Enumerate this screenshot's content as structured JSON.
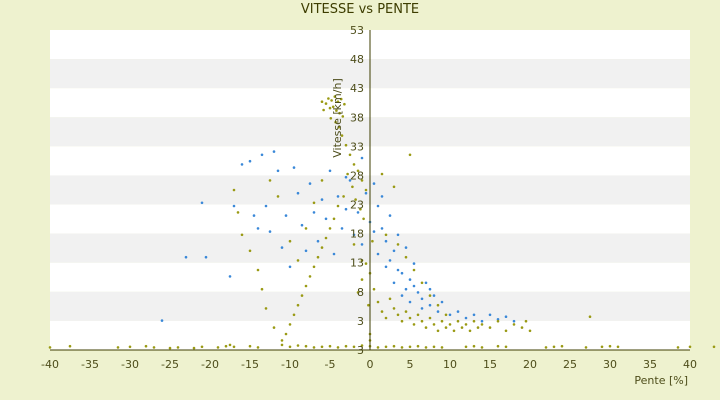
{
  "chart_data": {
    "type": "scatter",
    "title": "VITESSE vs PENTE",
    "xlabel": "Pente [%]",
    "ylabel": "Vitesse [km/h]",
    "xlim": [
      -40,
      40
    ],
    "ylim": [
      3,
      53
    ],
    "x_ticks": [
      "-40",
      "-35",
      "-30",
      "-25",
      "-20",
      "-15",
      "-10",
      "-5",
      "0",
      "5",
      "10",
      "15",
      "20",
      "25",
      "30",
      "35",
      "40"
    ],
    "y_ticks": [
      "3",
      "3",
      "8",
      "13",
      "18",
      "23",
      "28",
      "33",
      "38",
      "43",
      "48",
      "53"
    ],
    "grid": "horizontal bands",
    "colors": {
      "background": "#eef2cf",
      "band_light": "#ffffff",
      "band_dark": "#f1f1f1",
      "series_olive": "#9a9a14",
      "series_blue": "#3a88d8",
      "axis": "#3d3d00"
    },
    "series": [
      {
        "color": "#3a88d8",
        "points": [
          [
            -26,
            7.6
          ],
          [
            -23,
            17.5
          ],
          [
            -21,
            26.0
          ],
          [
            -20.5,
            17.5
          ],
          [
            -17.5,
            14.5
          ],
          [
            -17,
            25.5
          ],
          [
            -16,
            32.0
          ],
          [
            -15,
            32.5
          ],
          [
            -14.5,
            24.0
          ],
          [
            -14,
            22.0
          ],
          [
            -13.5,
            33.5
          ],
          [
            -13,
            25.5
          ],
          [
            -12.5,
            21.5
          ],
          [
            -12,
            34.0
          ],
          [
            -11.5,
            31.0
          ],
          [
            -11,
            19.0
          ],
          [
            -10.5,
            24.0
          ],
          [
            -10,
            16.0
          ],
          [
            -9.5,
            31.5
          ],
          [
            -9,
            27.5
          ],
          [
            -8.5,
            22.5
          ],
          [
            -8,
            18.5
          ],
          [
            -7.5,
            29.0
          ],
          [
            -7,
            24.5
          ],
          [
            -6.5,
            20.0
          ],
          [
            -6,
            26.5
          ],
          [
            -5.5,
            23.5
          ],
          [
            -5,
            31.0
          ],
          [
            -4.5,
            18.0
          ],
          [
            -4,
            27.0
          ],
          [
            -3.5,
            22.0
          ],
          [
            -3,
            25.0
          ],
          [
            -2.5,
            29.5
          ],
          [
            -2,
            21.0
          ],
          [
            -1.5,
            24.5
          ],
          [
            -1,
            19.5
          ],
          [
            -0.5,
            27.5
          ],
          [
            0,
            23.0
          ],
          [
            0.5,
            21.5
          ],
          [
            1,
            25.5
          ],
          [
            1,
            18.0
          ],
          [
            1.5,
            22.0
          ],
          [
            2,
            20.0
          ],
          [
            2,
            16.0
          ],
          [
            2.5,
            24.0
          ],
          [
            3,
            18.5
          ],
          [
            3,
            13.5
          ],
          [
            3.5,
            21.0
          ],
          [
            4,
            15.0
          ],
          [
            4,
            11.5
          ],
          [
            4.5,
            19.0
          ],
          [
            5,
            14.0
          ],
          [
            5,
            10.5
          ],
          [
            5.5,
            16.5
          ],
          [
            6,
            12.0
          ],
          [
            6.5,
            9.5
          ],
          [
            7,
            13.5
          ],
          [
            7.5,
            10.0
          ],
          [
            8,
            11.5
          ],
          [
            8.5,
            9.0
          ],
          [
            9,
            10.5
          ],
          [
            10,
            8.5
          ],
          [
            11,
            9.0
          ],
          [
            12,
            8.0
          ],
          [
            13,
            8.5
          ],
          [
            14,
            7.5
          ],
          [
            15,
            8.5
          ],
          [
            16,
            7.8
          ],
          [
            17,
            8.2
          ],
          [
            18,
            7.5
          ],
          [
            -3,
            30.0
          ],
          [
            -1,
            33.0
          ],
          [
            0.5,
            29.0
          ],
          [
            1.5,
            27.0
          ],
          [
            2.5,
            17.0
          ],
          [
            3.5,
            15.5
          ],
          [
            4.5,
            12.5
          ],
          [
            5.5,
            13.0
          ],
          [
            6.5,
            11.0
          ],
          [
            7.5,
            12.5
          ]
        ]
      },
      {
        "color": "#9a9a14",
        "points": [
          [
            -40,
            3.4
          ],
          [
            -37.5,
            3.6
          ],
          [
            -31.5,
            3.4
          ],
          [
            -30,
            3.5
          ],
          [
            -28,
            3.6
          ],
          [
            -27,
            3.4
          ],
          [
            -25,
            3.3
          ],
          [
            -24,
            3.4
          ],
          [
            -22,
            3.3
          ],
          [
            -21,
            3.5
          ],
          [
            -19,
            3.4
          ],
          [
            -18,
            3.6
          ],
          [
            -17.5,
            3.8
          ],
          [
            -17,
            3.5
          ],
          [
            -15,
            3.6
          ],
          [
            -14,
            3.4
          ],
          [
            -11,
            3.8
          ],
          [
            -10,
            3.5
          ],
          [
            -9,
            3.7
          ],
          [
            -8,
            3.6
          ],
          [
            -7,
            3.4
          ],
          [
            -6,
            3.5
          ],
          [
            -5,
            3.6
          ],
          [
            -4,
            3.4
          ],
          [
            -3,
            3.6
          ],
          [
            -2,
            3.5
          ],
          [
            -1,
            3.7
          ],
          [
            0,
            3.6
          ],
          [
            0,
            4.5
          ],
          [
            0,
            5.5
          ],
          [
            1,
            3.4
          ],
          [
            2,
            3.5
          ],
          [
            3,
            3.6
          ],
          [
            4,
            3.4
          ],
          [
            5,
            3.5
          ],
          [
            6,
            3.6
          ],
          [
            7,
            3.4
          ],
          [
            8,
            3.5
          ],
          [
            9,
            3.4
          ],
          [
            12,
            3.5
          ],
          [
            13,
            3.6
          ],
          [
            14,
            3.4
          ],
          [
            16,
            3.6
          ],
          [
            17,
            3.5
          ],
          [
            22,
            3.4
          ],
          [
            23,
            3.5
          ],
          [
            24,
            3.6
          ],
          [
            27,
            3.4
          ],
          [
            29,
            3.5
          ],
          [
            30,
            3.6
          ],
          [
            31,
            3.5
          ],
          [
            38.5,
            3.4
          ],
          [
            40,
            3.5
          ],
          [
            43,
            3.5
          ],
          [
            -5.5,
            41.5
          ],
          [
            -5.2,
            42.3
          ],
          [
            -5,
            40.8
          ],
          [
            -4.8,
            42.0
          ],
          [
            -4.6,
            41.0
          ],
          [
            -4.4,
            42.6
          ],
          [
            -4.2,
            40.4
          ],
          [
            -4,
            41.8
          ],
          [
            -3.8,
            40.0
          ],
          [
            -3.6,
            42.2
          ],
          [
            -3.4,
            39.5
          ],
          [
            -3.2,
            41.4
          ],
          [
            -5.8,
            40.5
          ],
          [
            -6,
            41.8
          ],
          [
            -4.9,
            39.2
          ],
          [
            -4.3,
            38.6
          ],
          [
            -3.9,
            37.8
          ],
          [
            -3.5,
            36.5
          ],
          [
            -3,
            35.0
          ],
          [
            -2.5,
            33.5
          ],
          [
            -2,
            32.0
          ],
          [
            -1.5,
            31.0
          ],
          [
            -1,
            29.5
          ],
          [
            -0.5,
            28.0
          ],
          [
            -2.8,
            30.5
          ],
          [
            -2.2,
            28.5
          ],
          [
            -1.8,
            26.5
          ],
          [
            -1.2,
            25.0
          ],
          [
            -0.8,
            23.5
          ],
          [
            -3.3,
            27.0
          ],
          [
            -4,
            25.5
          ],
          [
            -4.5,
            23.5
          ],
          [
            -5,
            22.0
          ],
          [
            -5.5,
            20.5
          ],
          [
            -6,
            19.0
          ],
          [
            -6.5,
            17.5
          ],
          [
            -7,
            16.0
          ],
          [
            -7.5,
            14.5
          ],
          [
            -8,
            13.0
          ],
          [
            -8.5,
            11.5
          ],
          [
            -9,
            10.0
          ],
          [
            -9.5,
            8.5
          ],
          [
            -10,
            7.0
          ],
          [
            -10.5,
            5.5
          ],
          [
            -11,
            4.5
          ],
          [
            -12,
            6.5
          ],
          [
            -13,
            9.5
          ],
          [
            -13.5,
            12.5
          ],
          [
            -14,
            15.5
          ],
          [
            -15,
            18.5
          ],
          [
            -16,
            21.0
          ],
          [
            -16.5,
            24.5
          ],
          [
            -17,
            28.0
          ],
          [
            -12.5,
            29.5
          ],
          [
            -11.5,
            27.0
          ],
          [
            -10,
            20.0
          ],
          [
            -9,
            17.0
          ],
          [
            -8,
            22.0
          ],
          [
            -7,
            26.0
          ],
          [
            -6,
            29.5
          ],
          [
            -2,
            19.5
          ],
          [
            -1,
            17.0
          ],
          [
            0,
            15.0
          ],
          [
            0.5,
            12.5
          ],
          [
            1,
            10.5
          ],
          [
            1.5,
            9.0
          ],
          [
            2,
            8.0
          ],
          [
            2.5,
            11.0
          ],
          [
            3,
            9.5
          ],
          [
            3.5,
            8.5
          ],
          [
            4,
            7.5
          ],
          [
            4.5,
            9.0
          ],
          [
            5,
            8.0
          ],
          [
            5.5,
            7.0
          ],
          [
            6,
            8.5
          ],
          [
            6.5,
            7.5
          ],
          [
            7,
            6.5
          ],
          [
            7.5,
            8.0
          ],
          [
            8,
            7.0
          ],
          [
            8.5,
            6.0
          ],
          [
            9,
            7.5
          ],
          [
            9.5,
            6.5
          ],
          [
            10,
            7.0
          ],
          [
            10.5,
            6.0
          ],
          [
            11,
            7.5
          ],
          [
            11.5,
            6.5
          ],
          [
            12,
            7.0
          ],
          [
            12.5,
            6.0
          ],
          [
            13,
            7.5
          ],
          [
            13.5,
            6.5
          ],
          [
            14,
            7.0
          ],
          [
            15,
            6.5
          ],
          [
            16,
            7.5
          ],
          [
            17,
            6.0
          ],
          [
            18,
            7.0
          ],
          [
            19,
            6.5
          ],
          [
            19.5,
            7.5
          ],
          [
            20,
            6.0
          ],
          [
            27.5,
            8.2
          ],
          [
            5,
            33.5
          ],
          [
            3,
            28.5
          ],
          [
            1.5,
            30.5
          ],
          [
            2,
            21.0
          ],
          [
            3.5,
            19.5
          ],
          [
            4.5,
            17.5
          ],
          [
            5.5,
            15.5
          ],
          [
            6.5,
            13.5
          ],
          [
            7.5,
            11.5
          ],
          [
            8.5,
            10.0
          ],
          [
            9.5,
            8.5
          ],
          [
            -1.5,
            12.0
          ],
          [
            -1,
            14.0
          ],
          [
            -0.5,
            16.5
          ],
          [
            -0.2,
            10.0
          ],
          [
            0.3,
            20.0
          ]
        ]
      }
    ]
  }
}
